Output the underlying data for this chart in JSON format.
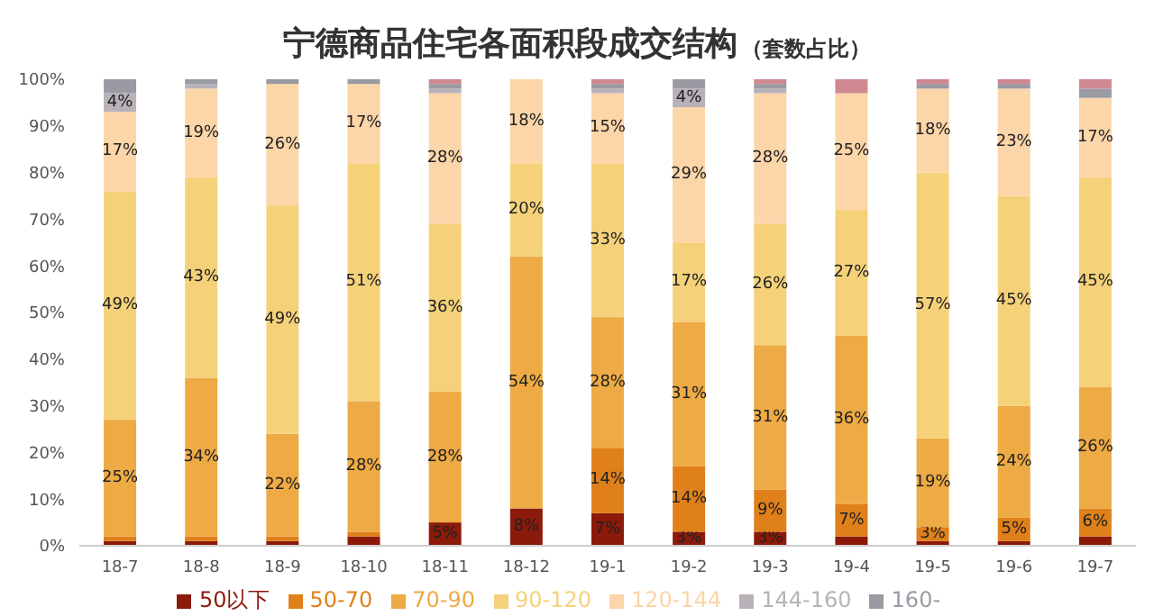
{
  "chart_data": {
    "type": "bar",
    "title": "宁德商品住宅各面积段成交结构",
    "subtitle": "（套数占比）",
    "stacked": true,
    "legend": "bottom",
    "grid": false,
    "categories": [
      "18-7",
      "18-8",
      "18-9",
      "18-10",
      "18-11",
      "18-12",
      "19-1",
      "19-2",
      "19-3",
      "19-4",
      "19-5",
      "19-6",
      "19-7"
    ],
    "ylim": [
      0,
      100
    ],
    "yticks": [
      {
        "value": 0,
        "label": "0%"
      },
      {
        "value": 10,
        "label": "10%"
      },
      {
        "value": 20,
        "label": "20%"
      },
      {
        "value": 30,
        "label": "30%"
      },
      {
        "value": 40,
        "label": "40%"
      },
      {
        "value": 50,
        "label": "50%"
      },
      {
        "value": 60,
        "label": "60%"
      },
      {
        "value": 70,
        "label": "70%"
      },
      {
        "value": 80,
        "label": "80%"
      },
      {
        "value": 90,
        "label": "90%"
      },
      {
        "value": 100,
        "label": "100%"
      }
    ],
    "series": [
      {
        "name": "50以下",
        "color": "#8b1a0a",
        "values": [
          1,
          1,
          1,
          2,
          5,
          8,
          7,
          3,
          3,
          2,
          1,
          1,
          2
        ],
        "value_labels": [
          null,
          null,
          null,
          null,
          "5%",
          "8%",
          "7%",
          "3%",
          "3%",
          null,
          null,
          null,
          null
        ]
      },
      {
        "name": "50-70",
        "color": "#e0801a",
        "values": [
          1,
          1,
          1,
          1,
          0,
          0,
          14,
          14,
          9,
          7,
          3,
          5,
          6
        ],
        "value_labels": [
          null,
          null,
          null,
          null,
          null,
          null,
          "14%",
          "14%",
          "9%",
          "7%",
          "3%",
          "5%",
          "6%"
        ]
      },
      {
        "name": "70-90",
        "color": "#eeaa44",
        "values": [
          25,
          34,
          22,
          28,
          28,
          54,
          28,
          31,
          31,
          36,
          19,
          24,
          26
        ],
        "value_labels": [
          "25%",
          "34%",
          "22%",
          "28%",
          "28%",
          "54%",
          "28%",
          "31%",
          "31%",
          "36%",
          "19%",
          "24%",
          "26%"
        ]
      },
      {
        "name": "90-120",
        "color": "#f5d27a",
        "values": [
          49,
          43,
          49,
          51,
          36,
          20,
          33,
          17,
          26,
          27,
          57,
          45,
          45
        ],
        "value_labels": [
          "49%",
          "43%",
          "49%",
          "51%",
          "36%",
          "20%",
          "33%",
          "17%",
          "26%",
          "27%",
          "57%",
          "45%",
          "45%"
        ]
      },
      {
        "name": "120-144",
        "color": "#fcd5a8",
        "values": [
          17,
          19,
          26,
          17,
          28,
          18,
          15,
          29,
          28,
          25,
          18,
          23,
          17
        ],
        "value_labels": [
          "17%",
          "19%",
          "26%",
          "17%",
          "28%",
          "18%",
          "15%",
          "29%",
          "28%",
          "25%",
          "18%",
          "23%",
          "17%"
        ]
      },
      {
        "name": "144-160",
        "color": "#b8b2b8",
        "values": [
          4,
          1,
          0,
          0,
          1,
          0,
          1,
          4,
          1,
          0,
          0,
          0,
          0
        ],
        "value_labels": [
          "4%",
          null,
          null,
          null,
          null,
          null,
          null,
          "4%",
          null,
          null,
          null,
          null,
          null
        ]
      },
      {
        "name": "160-",
        "color": "#9a9aa2",
        "values": [
          3,
          1,
          1,
          1,
          1,
          0,
          1,
          2,
          1,
          0,
          1,
          1,
          2
        ]
      },
      {
        "color": "#d08890",
        "values": [
          0,
          0,
          0,
          0,
          1,
          0,
          1,
          0,
          1,
          3,
          1,
          1,
          2
        ]
      }
    ]
  }
}
